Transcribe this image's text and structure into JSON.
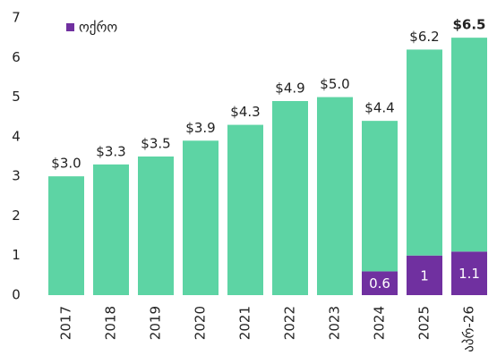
{
  "chart_data": {
    "type": "stacked_bar",
    "categories": [
      "2017",
      "2018",
      "2019",
      "2020",
      "2021",
      "2022",
      "2023",
      "2024",
      "2025",
      "აპრ-26"
    ],
    "series": [
      {
        "name": "ოქრო",
        "color": "#7030a0",
        "values": [
          null,
          null,
          null,
          null,
          null,
          null,
          null,
          0.6,
          1.0,
          1.1
        ]
      },
      {
        "color": "#5dd4a4",
        "values": [
          3.0,
          3.3,
          3.5,
          3.9,
          4.3,
          4.9,
          5.0,
          3.8,
          5.2,
          5.4
        ]
      }
    ],
    "total_labels": [
      "$3.0",
      "$3.3",
      "$3.5",
      "$3.9",
      "$4.3",
      "$4.9",
      "$5.0",
      "$4.4",
      "$6.2",
      "$6.5"
    ],
    "ylim": [
      0,
      7
    ],
    "yticks": [
      0,
      1,
      2,
      3,
      4,
      5,
      6,
      7
    ],
    "grid": false,
    "legend": "top-left"
  }
}
